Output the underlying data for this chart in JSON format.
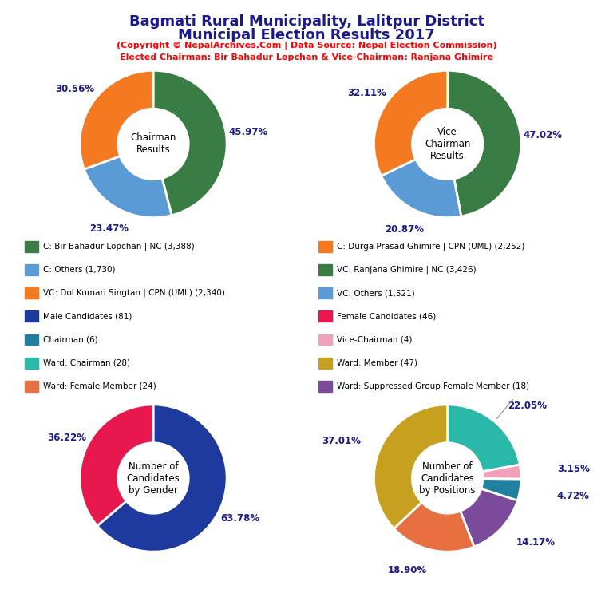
{
  "title_line1": "Bagmati Rural Municipality, Lalitpur District",
  "title_line2": "Municipal Election Results 2017",
  "subtitle1": "(Copyright © NepalArchives.Com | Data Source: Nepal Election Commission)",
  "subtitle2": "Elected Chairman: Bir Bahadur Lopchan & Vice-Chairman: Ranjana Ghimire",
  "chairman": {
    "label": "Chairman\nResults",
    "values": [
      45.97,
      23.47,
      30.56
    ],
    "colors": [
      "#3a7d44",
      "#5b9bd5",
      "#f47920"
    ],
    "pct_labels": [
      "45.97%",
      "23.47%",
      "30.56%"
    ]
  },
  "vice_chairman": {
    "label": "Vice\nChairman\nResults",
    "values": [
      47.02,
      20.87,
      32.11
    ],
    "colors": [
      "#3a7d44",
      "#5b9bd5",
      "#f47920"
    ],
    "pct_labels": [
      "47.02%",
      "20.87%",
      "32.11%"
    ]
  },
  "gender": {
    "label": "Number of\nCandidates\nby Gender",
    "values": [
      63.78,
      36.22
    ],
    "colors": [
      "#1f3a9f",
      "#e8174e"
    ],
    "pct_labels": [
      "63.78%",
      "36.22%"
    ]
  },
  "positions": {
    "label": "Number of\nCandidates\nby Positions",
    "values": [
      22.05,
      3.15,
      4.72,
      14.17,
      18.9,
      37.01
    ],
    "colors": [
      "#2ab8a8",
      "#f0a0b8",
      "#2080a0",
      "#7b4a9a",
      "#e87040",
      "#c8a020"
    ],
    "pct_labels": [
      "22.05%",
      "3.15%",
      "4.72%",
      "14.17%",
      "18.90%",
      "37.01%"
    ]
  },
  "legend_left": [
    {
      "label": "C: Bir Bahadur Lopchan | NC (3,388)",
      "color": "#3a7d44"
    },
    {
      "label": "C: Others (1,730)",
      "color": "#5b9bd5"
    },
    {
      "label": "VC: Dol Kumari Singtan | CPN (UML) (2,340)",
      "color": "#f47920"
    },
    {
      "label": "Male Candidates (81)",
      "color": "#1f3a9f"
    },
    {
      "label": "Chairman (6)",
      "color": "#2080a0"
    },
    {
      "label": "Ward: Chairman (28)",
      "color": "#2ab8a8"
    },
    {
      "label": "Ward: Female Member (24)",
      "color": "#e87040"
    }
  ],
  "legend_right": [
    {
      "label": "C: Durga Prasad Ghimire | CPN (UML) (2,252)",
      "color": "#f47920"
    },
    {
      "label": "VC: Ranjana Ghimire | NC (3,426)",
      "color": "#3a7d44"
    },
    {
      "label": "VC: Others (1,521)",
      "color": "#5b9bd5"
    },
    {
      "label": "Female Candidates (46)",
      "color": "#e8174e"
    },
    {
      "label": "Vice-Chairman (4)",
      "color": "#f0a0b8"
    },
    {
      "label": "Ward: Member (47)",
      "color": "#c8a020"
    },
    {
      "label": "Ward: Suppressed Group Female Member (18)",
      "color": "#7b4a9a"
    }
  ]
}
